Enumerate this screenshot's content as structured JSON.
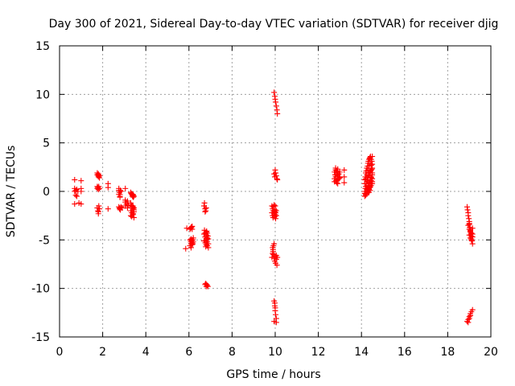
{
  "chart_data": {
    "type": "scatter",
    "title": "Day 300 of 2021, Sidereal Day-to-day VTEC variation (SDTVAR) for receiver djig",
    "xlabel": "GPS time / hours",
    "ylabel": "SDTVAR / TECUs",
    "xlim": [
      0,
      20
    ],
    "ylim": [
      -15,
      15
    ],
    "xticks": [
      "0",
      "2",
      "4",
      "6",
      "8",
      "10",
      "12",
      "14",
      "16",
      "18",
      "20"
    ],
    "yticks": [
      "-15",
      "-10",
      "-5",
      "0",
      "5",
      "10",
      "15"
    ],
    "grid": true,
    "marker": "+",
    "color": "#ff0000",
    "series": [
      {
        "name": "SDTVAR",
        "x": [
          0.7,
          0.7,
          0.7,
          0.7,
          0.75,
          0.75,
          0.8,
          0.8,
          0.85,
          0.9,
          1.0,
          1.0,
          1.0,
          1.0,
          1.75,
          1.75,
          1.8,
          1.8,
          1.8,
          1.8,
          1.85,
          1.85,
          1.75,
          1.75,
          1.78,
          1.8,
          1.82,
          1.85,
          1.75,
          1.78,
          1.8,
          1.82,
          1.85,
          1.8,
          2.25,
          2.25,
          2.25,
          2.75,
          2.75,
          2.78,
          2.8,
          2.8,
          2.82,
          2.85,
          2.75,
          2.78,
          2.8,
          2.82,
          2.85,
          2.9,
          2.75,
          2.8,
          3.05,
          3.05,
          3.05,
          3.05,
          3.1,
          3.15,
          3.15,
          3.2,
          3.3,
          3.32,
          3.35,
          3.35,
          3.38,
          3.38,
          3.4,
          3.4,
          3.42,
          3.42,
          3.45,
          3.3,
          3.32,
          3.35,
          3.38,
          3.4,
          3.4,
          3.42,
          3.45,
          3.3,
          3.35,
          3.4,
          3.42,
          3.45,
          3.3,
          3.35,
          3.4,
          3.45,
          3.4,
          3.45,
          5.85,
          5.9,
          6.05,
          6.08,
          6.1,
          6.12,
          6.15,
          6.15,
          6.05,
          6.08,
          6.1,
          6.12,
          6.15,
          6.18,
          6.2,
          6.05,
          6.1,
          6.15,
          6.18,
          6.2,
          6.1,
          6.15,
          6.7,
          6.72,
          6.75,
          6.75,
          6.78,
          6.8,
          6.8,
          6.82,
          6.85,
          6.85,
          6.88,
          6.9,
          6.7,
          6.75,
          6.8,
          6.85,
          6.9,
          6.7,
          6.75,
          6.8,
          6.85,
          6.9,
          6.75,
          6.8,
          6.85,
          6.78,
          6.82,
          6.88,
          6.72,
          6.75,
          6.78,
          6.8,
          6.82,
          6.85,
          9.85,
          9.85,
          9.88,
          9.88,
          9.9,
          9.9,
          9.92,
          9.95,
          9.95,
          9.98,
          9.98,
          10.0,
          10.0,
          10.0,
          10.02,
          10.02,
          10.05,
          10.05,
          9.88,
          9.9,
          9.92,
          9.85,
          9.88,
          9.9,
          9.92,
          9.95,
          9.92,
          9.95,
          9.98,
          10.0,
          10.02,
          10.05,
          10.05,
          10.08,
          10.1,
          9.95,
          9.98,
          10.0,
          10.02,
          10.05,
          10.08,
          10.1,
          9.95,
          9.98,
          10.0,
          10.02,
          10.05,
          10.08,
          10.1,
          9.95,
          9.98,
          10.0,
          10.02,
          10.05,
          9.95,
          9.98,
          10.0,
          10.05,
          12.75,
          12.75,
          12.78,
          12.8,
          12.8,
          12.82,
          12.85,
          12.85,
          12.88,
          12.9,
          12.9,
          12.95,
          13.0,
          13.0,
          12.75,
          12.8,
          12.85,
          12.9,
          12.95,
          12.8,
          12.85,
          12.9,
          12.95,
          13.2,
          13.2,
          13.2,
          14.15,
          14.15,
          14.18,
          14.2,
          14.2,
          14.22,
          14.25,
          14.25,
          14.28,
          14.3,
          14.3,
          14.32,
          14.35,
          14.35,
          14.38,
          14.4,
          14.4,
          14.42,
          14.45,
          14.45,
          14.48,
          14.5,
          14.5,
          14.15,
          14.18,
          14.2,
          14.22,
          14.25,
          14.28,
          14.3,
          14.32,
          14.35,
          14.38,
          14.4,
          14.42,
          14.45,
          14.48,
          14.5,
          14.15,
          14.2,
          14.25,
          14.3,
          14.35,
          14.4,
          14.45,
          14.5,
          14.15,
          14.2,
          14.25,
          14.3,
          14.35,
          14.4,
          14.45,
          14.5,
          14.2,
          14.25,
          14.3,
          14.35,
          14.4,
          14.45,
          14.5,
          14.25,
          14.3,
          14.35,
          14.4,
          14.45,
          14.5,
          14.35,
          14.4,
          14.45,
          14.5,
          18.9,
          18.92,
          18.95,
          18.95,
          18.98,
          19.0,
          19.0,
          19.02,
          19.05,
          19.05,
          19.08,
          19.1,
          19.1,
          19.12,
          19.15,
          19.15,
          18.95,
          19.0,
          19.05,
          19.1,
          19.15,
          19.0,
          19.05,
          19.1,
          19.15,
          19.0,
          19.05,
          19.1,
          18.9,
          18.95,
          19.0,
          19.05,
          19.1,
          19.15,
          18.95,
          19.0,
          19.05
        ],
        "y": [
          1.2,
          0.3,
          0.0,
          -1.3,
          -0.4,
          0.1,
          0.2,
          -0.5,
          0.0,
          -1.2,
          1.1,
          0.3,
          0.0,
          -1.3,
          1.9,
          1.7,
          1.8,
          1.6,
          1.5,
          1.7,
          1.6,
          1.4,
          0.5,
          0.3,
          0.4,
          0.2,
          0.5,
          0.3,
          -1.7,
          -2.0,
          -2.3,
          -1.5,
          -1.8,
          -2.1,
          0.8,
          0.4,
          -1.8,
          0.3,
          0.1,
          -0.1,
          -0.3,
          -0.5,
          0.1,
          0.0,
          -1.6,
          -1.8,
          -1.7,
          -1.9,
          -1.6,
          -1.7,
          -0.3,
          -0.6,
          0.3,
          -0.9,
          -1.1,
          -1.5,
          -1.3,
          -1.0,
          -1.7,
          -1.4,
          -0.1,
          -0.2,
          -0.3,
          -0.3,
          -0.4,
          -0.5,
          -0.5,
          -0.3,
          -0.6,
          -0.4,
          -0.5,
          -1.2,
          -1.4,
          -1.5,
          -1.6,
          -1.5,
          -1.8,
          -1.9,
          -1.7,
          -2.0,
          -2.2,
          -2.4,
          -2.3,
          -2.1,
          -2.5,
          -2.6,
          -2.4,
          -2.7,
          -1.6,
          -1.9,
          -5.9,
          -3.8,
          -3.9,
          -3.8,
          -3.7,
          -3.7,
          -3.6,
          -3.9,
          -5.0,
          -5.2,
          -5.4,
          -5.1,
          -5.3,
          -5.0,
          -4.8,
          -5.6,
          -5.8,
          -5.5,
          -5.4,
          -5.2,
          -4.9,
          -5.0,
          -1.5,
          -1.2,
          -1.8,
          -2.1,
          -2.0,
          -1.7,
          -4.2,
          -4.5,
          -4.8,
          -4.3,
          -4.6,
          -4.9,
          -4.4,
          -4.7,
          -5.0,
          -5.2,
          -5.4,
          -5.1,
          -5.3,
          -5.5,
          -5.6,
          -5.8,
          -9.6,
          -9.8,
          -9.7,
          -9.5,
          -9.6,
          -9.8,
          -4.0,
          -4.3,
          -5.7,
          -5.5,
          -4.1,
          -4.9,
          -1.5,
          -2.2,
          -2.5,
          -1.8,
          -2.0,
          -2.7,
          -1.6,
          -2.3,
          -1.4,
          -2.1,
          -2.6,
          -1.5,
          -1.9,
          -2.4,
          -2.2,
          -2.8,
          -2.0,
          -2.5,
          -5.8,
          -6.2,
          -6.5,
          -6.8,
          -6.4,
          -6.0,
          -5.6,
          -5.4,
          -6.5,
          -6.9,
          -7.2,
          -6.7,
          -7.4,
          -7.0,
          -6.6,
          -7.6,
          -6.8,
          1.8,
          1.5,
          2.2,
          1.9,
          1.6,
          1.3,
          1.2,
          10.2,
          9.8,
          9.5,
          9.2,
          8.8,
          8.4,
          8.0,
          -11.3,
          -11.8,
          -12.3,
          -12.7,
          -13.1,
          -13.4,
          -11.5,
          -12.0,
          -13.5,
          2.0,
          1.3,
          1.7,
          2.2,
          1.5,
          1.1,
          1.9,
          0.9,
          1.6,
          2.3,
          1.2,
          1.8,
          2.0,
          1.4,
          1.0,
          1.5,
          1.1,
          0.8,
          1.3,
          2.4,
          2.1,
          1.7,
          1.5,
          2.2,
          1.5,
          0.9,
          1.2,
          0.8,
          1.5,
          1.9,
          1.3,
          2.1,
          2.4,
          1.7,
          2.6,
          2.9,
          2.2,
          3.1,
          3.3,
          2.6,
          3.4,
          3.5,
          2.9,
          3.6,
          3.3,
          2.7,
          3.1,
          3.6,
          2.8,
          0.0,
          0.3,
          0.5,
          0.8,
          1.0,
          1.2,
          1.4,
          1.6,
          1.7,
          1.9,
          2.0,
          2.1,
          2.2,
          2.3,
          2.4,
          -0.5,
          -0.3,
          -0.1,
          0.1,
          0.3,
          0.5,
          0.8,
          1.0,
          -0.2,
          0.0,
          0.2,
          0.4,
          0.6,
          0.8,
          1.1,
          1.3,
          -0.4,
          -0.2,
          0.0,
          0.2,
          0.4,
          0.6,
          0.8,
          0.3,
          0.6,
          0.9,
          1.1,
          1.4,
          1.7,
          -0.1,
          0.1,
          1.5,
          1.9,
          -1.6,
          -1.9,
          -2.2,
          -2.5,
          -2.8,
          -3.1,
          -3.4,
          -3.7,
          -3.9,
          -4.2,
          -4.4,
          -4.6,
          -4.9,
          -5.1,
          -5.4,
          -3.8,
          -3.5,
          -3.3,
          -4.0,
          -4.3,
          -4.7,
          -4.5,
          -4.8,
          -5.0,
          -4.4,
          -3.9,
          -4.1,
          -4.3,
          -13.4,
          -13.2,
          -12.9,
          -12.6,
          -12.4,
          -12.2,
          -13.5,
          -13.1,
          -12.8
        ]
      }
    ]
  }
}
